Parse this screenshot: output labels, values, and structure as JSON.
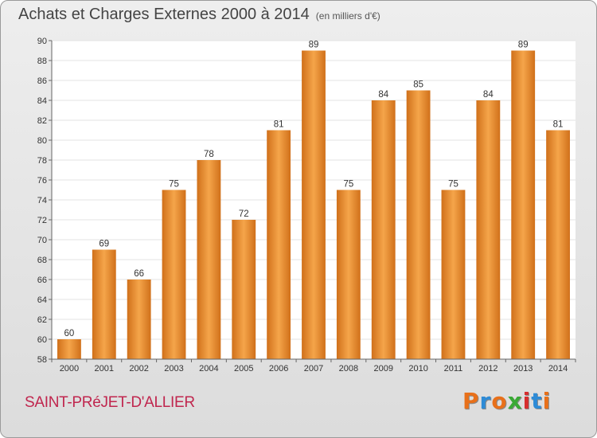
{
  "header": {
    "title": "Achats et Charges Externes 2000 à 2014",
    "subtitle": "(en milliers d'€)"
  },
  "footer": {
    "commune": "SAINT-PRéJET-D'ALLIER",
    "brand": [
      "P",
      "r",
      "o",
      "x",
      "i",
      "t",
      "i"
    ],
    "brand_colors": [
      "#e8701a",
      "#2e8bd6",
      "#e8701a",
      "#3aa935",
      "#d62e2e",
      "#2e8bd6",
      "#e8701a"
    ]
  },
  "chart_data": {
    "type": "bar",
    "title": "Achats et Charges Externes 2000 à 2014",
    "subtitle": "(en milliers d'€)",
    "categories": [
      "2000",
      "2001",
      "2002",
      "2003",
      "2004",
      "2005",
      "2006",
      "2007",
      "2008",
      "2009",
      "2010",
      "2011",
      "2012",
      "2013",
      "2014"
    ],
    "values": [
      60,
      69,
      66,
      75,
      78,
      72,
      81,
      89,
      75,
      84,
      85,
      75,
      84,
      89,
      81
    ],
    "ylim": [
      58,
      90
    ],
    "yticks": [
      58,
      60,
      62,
      64,
      66,
      68,
      70,
      72,
      74,
      76,
      78,
      80,
      82,
      84,
      86,
      88,
      90
    ],
    "grid": true,
    "bar_color_top": "#f5a54a",
    "bar_color_bottom": "#d0701a"
  }
}
